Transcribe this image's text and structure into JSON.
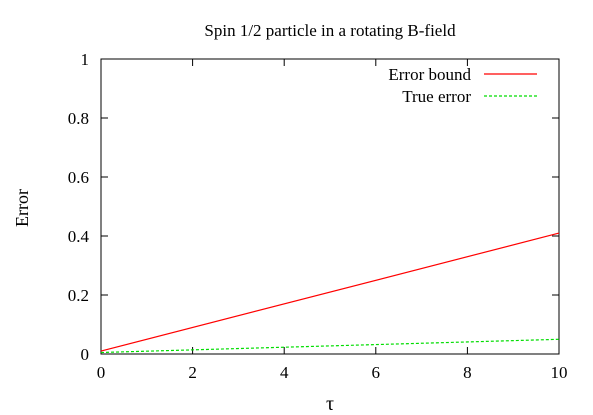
{
  "chart_data": {
    "type": "line",
    "title": "Spin 1/2 particle in a rotating B-field",
    "xlabel": "τ",
    "ylabel": "Error",
    "xlim": [
      0,
      10
    ],
    "ylim": [
      0,
      1
    ],
    "xticks": [
      "0",
      "2",
      "4",
      "6",
      "8",
      "10"
    ],
    "yticks": [
      "0",
      "0.2",
      "0.4",
      "0.6",
      "0.8",
      "1"
    ],
    "grid": false,
    "legend_position": "top-right",
    "series": [
      {
        "name": "Error bound",
        "color": "#ff0000",
        "style": "solid",
        "x": [
          0,
          10
        ],
        "y": [
          0.01,
          0.41
        ]
      },
      {
        "name": "True error",
        "color": "#00dd00",
        "style": "dashed",
        "x": [
          0,
          10
        ],
        "y": [
          0.005,
          0.05
        ]
      }
    ]
  }
}
